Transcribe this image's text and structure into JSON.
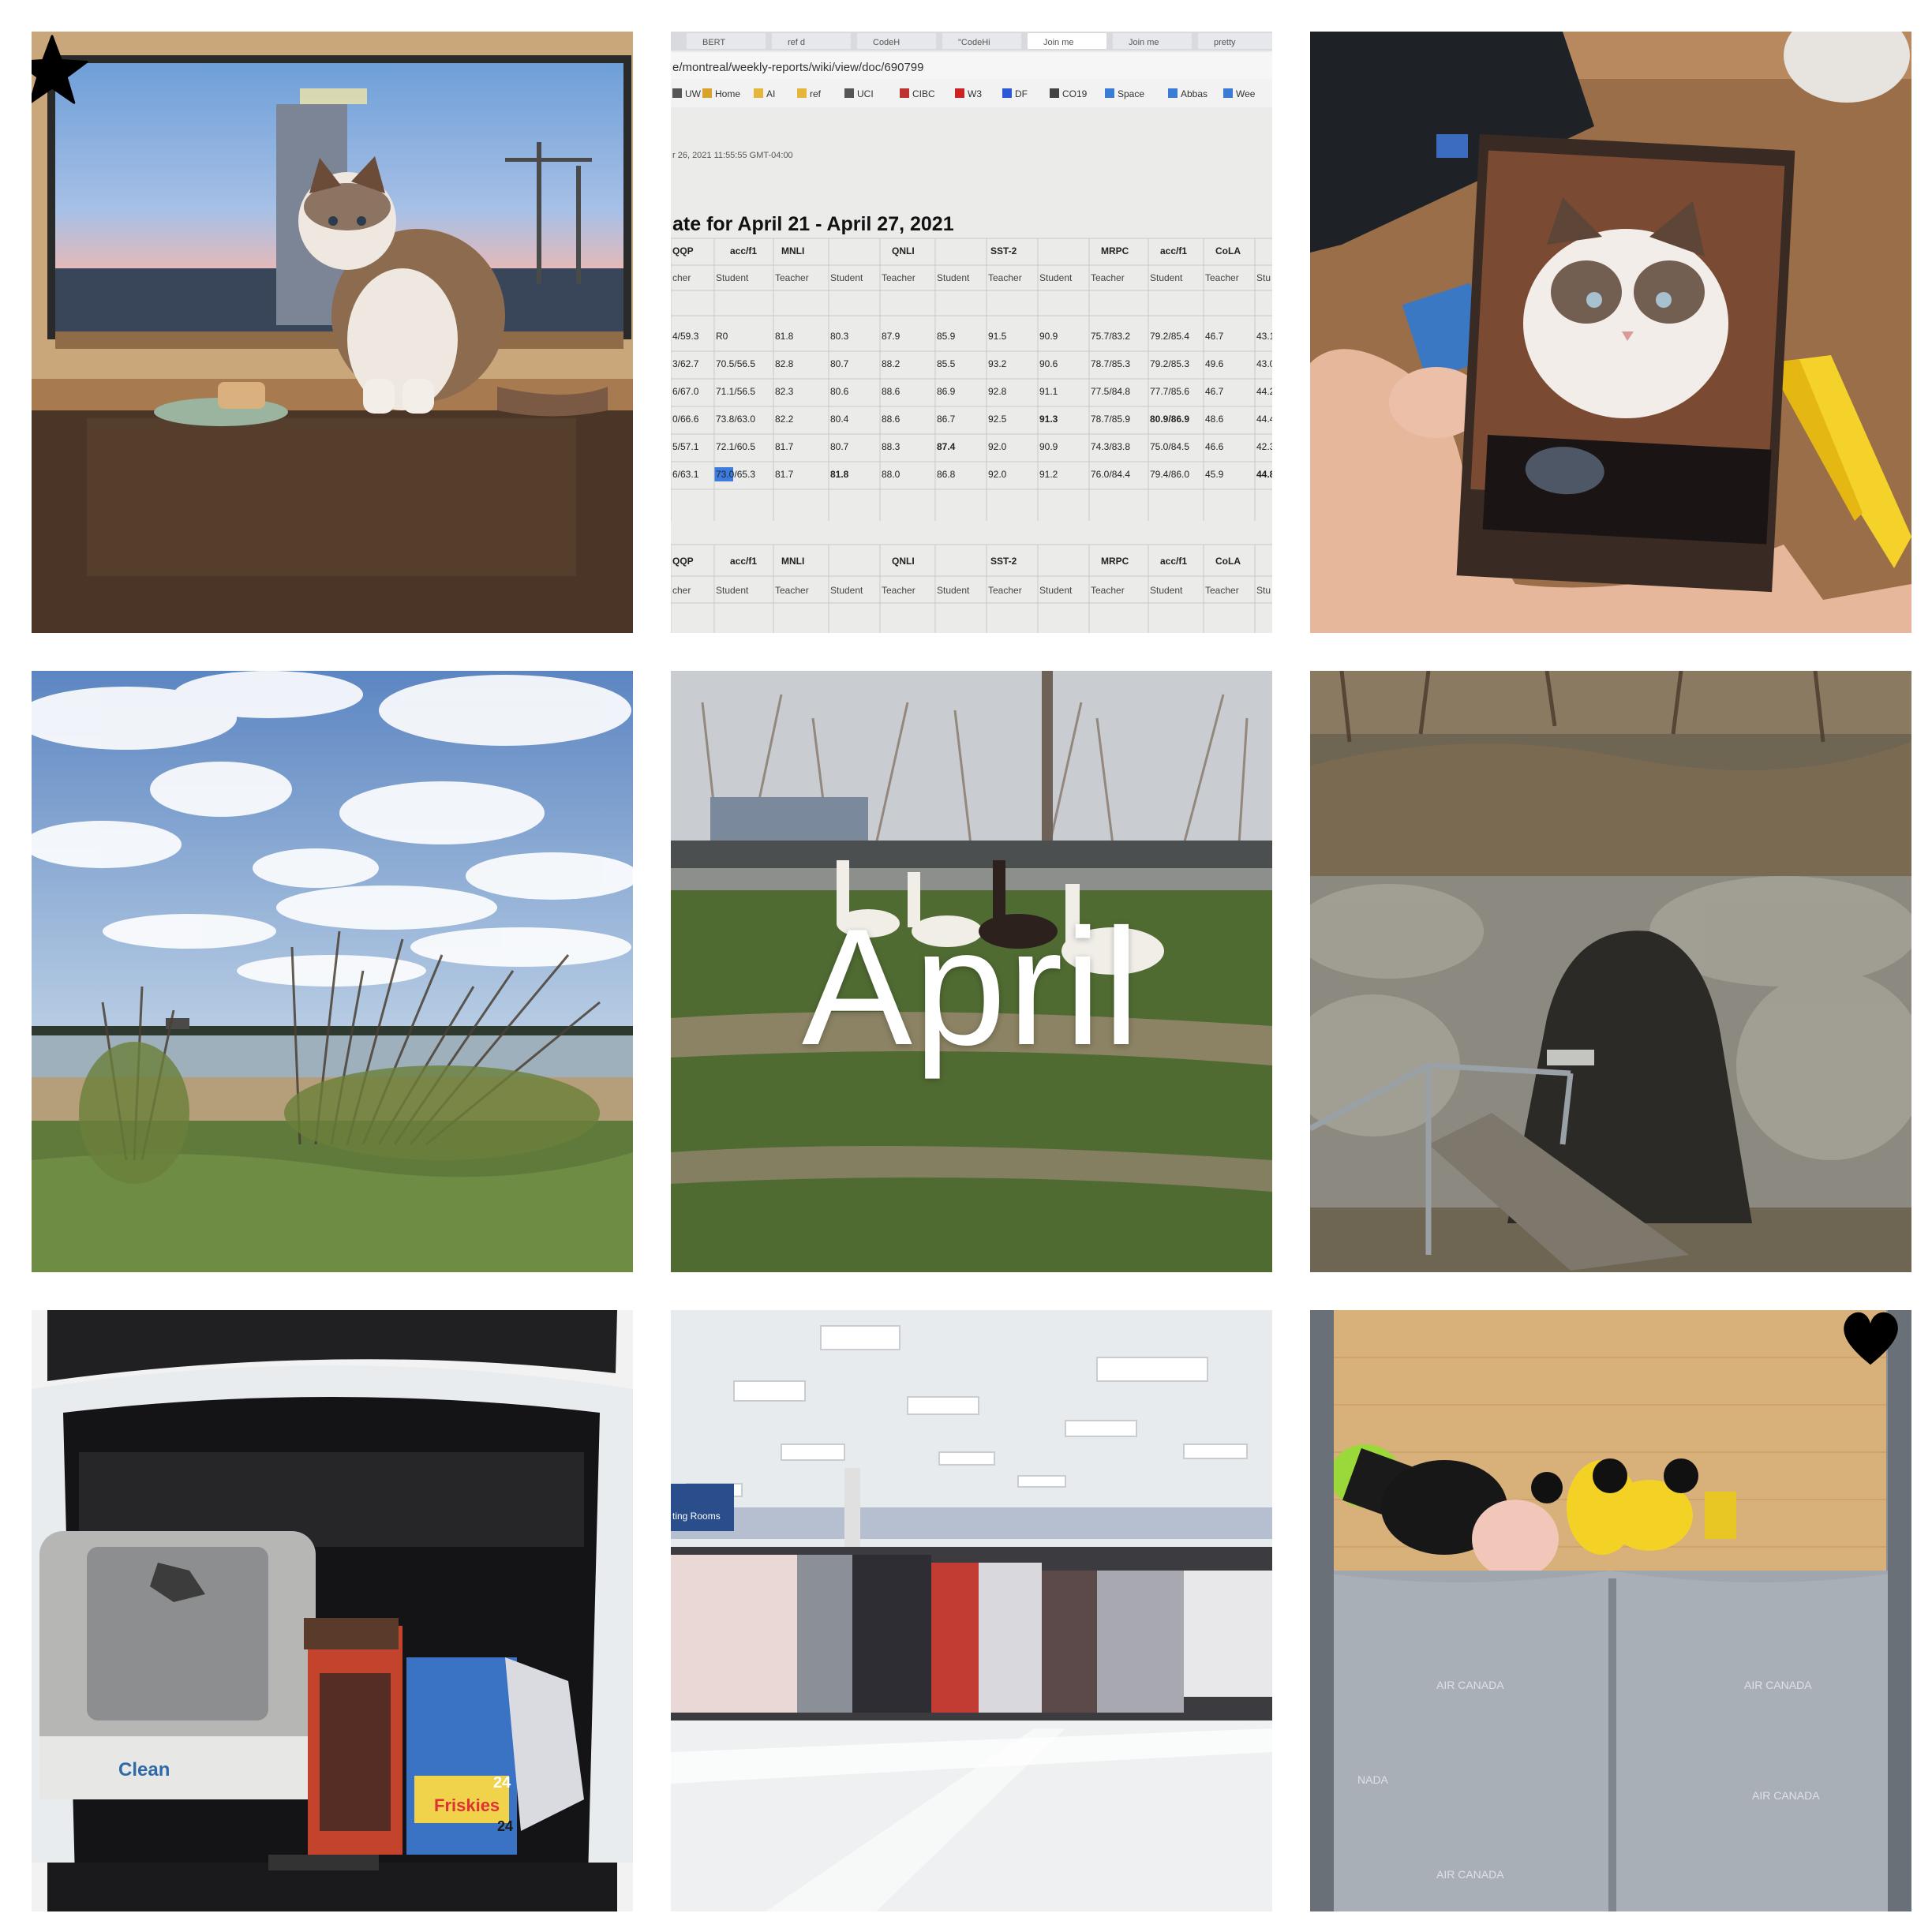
{
  "collage": {
    "month_label": "April",
    "colors": {
      "background": "#ffffff",
      "label": "#ffffff"
    },
    "photos": [
      {
        "position": "top-left",
        "subject": "ragdoll cat sitting on windowsill with cake at sunset",
        "icon": "cat-photo"
      },
      {
        "position": "top-center",
        "subject": "monitor showing weekly report table",
        "icon": "screen-photo"
      },
      {
        "position": "top-right",
        "subject": "hand holding printed photo of cat",
        "icon": "print-photo"
      },
      {
        "position": "middle-left",
        "subject": "cloudy sky over lake and shrubs",
        "icon": "landscape-photo"
      },
      {
        "position": "middle-center",
        "subject": "llamas resting on grass",
        "icon": "llama-photo"
      },
      {
        "position": "middle-right",
        "subject": "stone cave entrance with stairs",
        "icon": "cave-photo"
      },
      {
        "position": "bottom-left",
        "subject": "car trunk with litter box and cat food",
        "icon": "trunk-photo"
      },
      {
        "position": "bottom-center",
        "subject": "department store aisle",
        "icon": "store-photo"
      },
      {
        "position": "bottom-right",
        "subject": "plush toys in seat-back pocket",
        "icon": "plush-photo"
      }
    ],
    "doodles": [
      {
        "shape": "star",
        "color": "#000000"
      },
      {
        "shape": "heart",
        "color": "#000000"
      }
    ]
  },
  "screen": {
    "tabs": [
      "BERT",
      "ref d",
      "CodeH",
      "\"CodeHi",
      "Join me",
      "Join me",
      "pretty"
    ],
    "url": "e/montreal/weekly-reports/wiki/view/doc/690799",
    "bookmarks": [
      "UW",
      "Home",
      "AI",
      "ref",
      "UCI",
      "CIBC",
      "W3",
      "DF",
      "CO19",
      "Space",
      "Abbas",
      "Wee"
    ],
    "timestamp": "r 26, 2021 11:55:55 GMT-04:00",
    "heading": "ate for April 21 - April 27, 2021",
    "groups": [
      "QQP",
      "acc/f1",
      "MNLI",
      "QNLI",
      "SST-2",
      "MRPC",
      "acc/f1",
      "CoLA"
    ],
    "roles": [
      "cher",
      "Student",
      "Teacher",
      "Student",
      "Teacher",
      "Student",
      "Teacher",
      "Student",
      "Teacher",
      "Student",
      "Teacher",
      "Stu"
    ],
    "rows": [
      [
        "4/59.3",
        "R0",
        "81.8",
        "80.3",
        "87.9",
        "85.9",
        "91.5",
        "90.9",
        "75.7/83.2",
        "79.2/85.4",
        "46.7",
        "43.1"
      ],
      [
        "3/62.7",
        "70.5/56.5",
        "82.8",
        "80.7",
        "88.2",
        "85.5",
        "93.2",
        "90.6",
        "78.7/85.3",
        "79.2/85.3",
        "49.6",
        "43.0"
      ],
      [
        "6/67.0",
        "71.1/56.5",
        "82.3",
        "80.6",
        "88.6",
        "86.9",
        "92.8",
        "91.1",
        "77.5/84.8",
        "77.7/85.6",
        "46.7",
        "44.2"
      ],
      [
        "0/66.6",
        "73.8/63.0",
        "82.2",
        "80.4",
        "88.6",
        "86.7",
        "92.5",
        "91.3",
        "78.7/85.9",
        "80.9/86.9",
        "48.6",
        "44.4"
      ],
      [
        "5/57.1",
        "72.1/60.5",
        "81.7",
        "80.7",
        "88.3",
        "87.4",
        "92.0",
        "90.9",
        "74.3/83.8",
        "75.0/84.5",
        "46.6",
        "42.3"
      ],
      [
        "6/63.1",
        "73.0/65.3",
        "81.7",
        "81.8",
        "88.0",
        "86.8",
        "92.0",
        "91.2",
        "76.0/84.4",
        "79.4/86.0",
        "45.9",
        "44.8"
      ]
    ],
    "groups2": [
      "QQP",
      "acc/f1",
      "MNLI",
      "QNLI",
      "SST-2",
      "MRPC",
      "acc/f1",
      "CoLA"
    ],
    "roles2": [
      "cher",
      "Student",
      "Teacher",
      "Student",
      "Teacher",
      "Student",
      "Teacher",
      "Student",
      "Teacher",
      "Student",
      "Teacher",
      "Stu"
    ]
  },
  "products": {
    "litter_box": "Clean",
    "cat_food": "Friskies",
    "count": "24",
    "count2": "24"
  },
  "plush_bag": {
    "brand1": "AIR CANADA",
    "brand2": "AIR CANADA",
    "brand3": "NADA",
    "brand4": "AIR CANADA",
    "brand5": "AIR CANADA"
  },
  "store": {
    "sign": "ting Rooms"
  }
}
